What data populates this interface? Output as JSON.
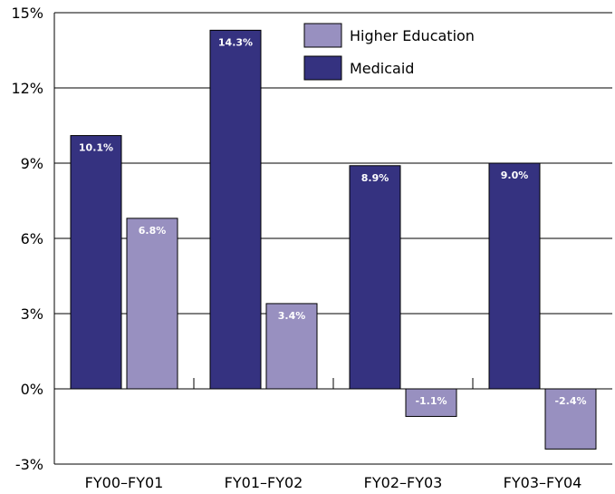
{
  "chart_data": {
    "type": "bar",
    "title": "",
    "xlabel": "",
    "ylabel": "",
    "categories": [
      "FY00–FY01",
      "FY01–FY02",
      "FY02–FY03",
      "FY03–FY04"
    ],
    "series": [
      {
        "name": "Medicaid",
        "color": "#353280",
        "values": [
          10.1,
          14.3,
          8.9,
          9.0
        ]
      },
      {
        "name": "Higher Education",
        "color": "#9890c0",
        "values": [
          6.8,
          3.4,
          -1.1,
          -2.4
        ]
      }
    ],
    "data_labels": [
      [
        "10.1%",
        "14.3%",
        "8.9%",
        "9.0%"
      ],
      [
        "6.8%",
        "3.4%",
        "-1.1%",
        "-2.4%"
      ]
    ],
    "ylim": [
      -3,
      15
    ],
    "yticks": [
      -3,
      0,
      3,
      6,
      9,
      12,
      15
    ],
    "ytick_labels": [
      "-3%",
      "0%",
      "3%",
      "6%",
      "9%",
      "12%",
      "15%"
    ],
    "grid": true,
    "legend": {
      "position": "top-right",
      "entries": [
        {
          "label": "Higher Education",
          "color": "#9890c0"
        },
        {
          "label": "Medicaid",
          "color": "#353280"
        }
      ]
    }
  }
}
